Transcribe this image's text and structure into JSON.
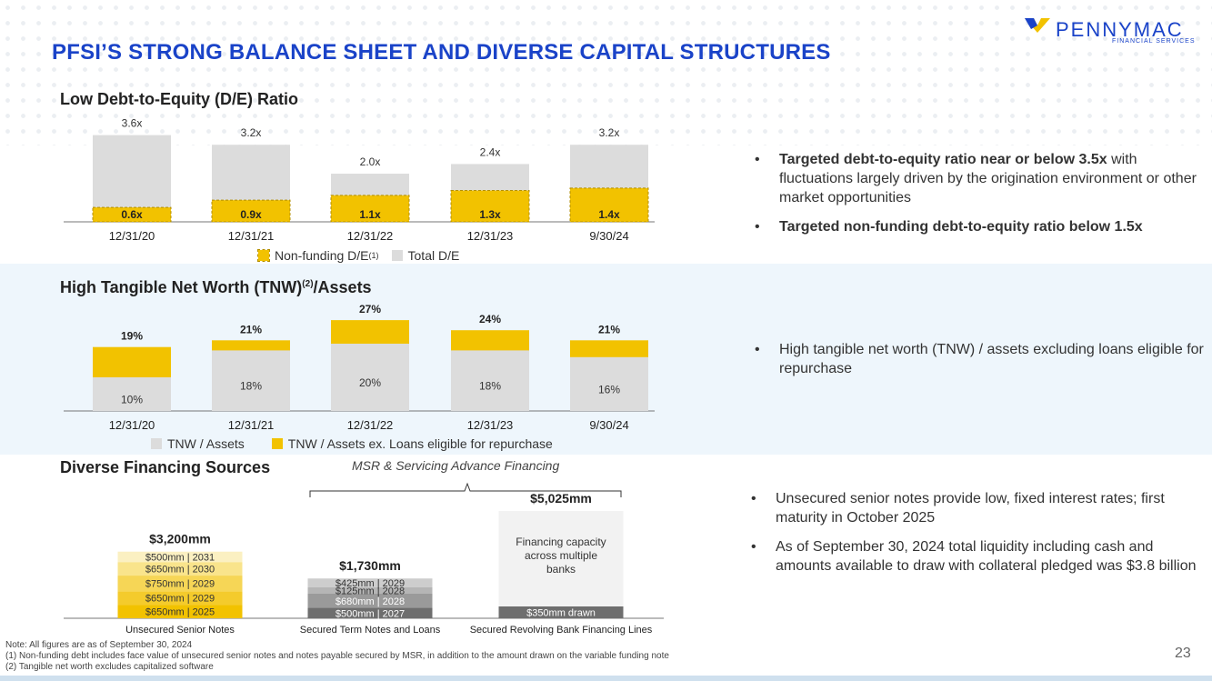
{
  "brand": {
    "name": "PENNYMAC",
    "sub": "FINANCIAL SERVICES",
    "color": "#1a43c8",
    "accent": "#f2c200"
  },
  "title": "PFSI’S STRONG BALANCE SHEET AND DIVERSE CAPITAL STRUCTURES",
  "sections": {
    "de": "Low Debt-to-Equity (D/E) Ratio",
    "tnw_a": "High Tangible Net Worth (TNW)",
    "tnw_sup": "(2)",
    "tnw_b": "/Assets",
    "fin": "Diverse Financing Sources"
  },
  "chart_data": [
    {
      "type": "bar",
      "categories": [
        "12/31/20",
        "12/31/21",
        "12/31/22",
        "12/31/23",
        "9/30/24"
      ],
      "series": [
        {
          "name": "Non-funding D/E",
          "values": [
            0.6,
            0.9,
            1.1,
            1.3,
            1.4
          ],
          "labels": [
            "0.6x",
            "0.9x",
            "1.1x",
            "1.3x",
            "1.4x"
          ],
          "color": "#f2c200"
        },
        {
          "name": "Total D/E",
          "values": [
            3.6,
            3.2,
            2.0,
            2.4,
            3.2
          ],
          "labels": [
            "3.6x",
            "3.2x",
            "2.0x",
            "2.4x",
            "3.2x"
          ],
          "color": "#dcdcdc"
        }
      ],
      "legend": [
        "Non-funding D/E",
        "Total D/E"
      ],
      "legend_sup": "(1)",
      "ylim": [
        0,
        4.0
      ]
    },
    {
      "type": "bar",
      "categories": [
        "12/31/20",
        "12/31/21",
        "12/31/22",
        "12/31/23",
        "9/30/24"
      ],
      "series": [
        {
          "name": "TNW / Assets",
          "values": [
            10,
            18,
            20,
            18,
            16
          ],
          "labels": [
            "10%",
            "18%",
            "20%",
            "18%",
            "16%"
          ],
          "color": "#dcdcdc"
        },
        {
          "name": "TNW / Assets ex. Loans eligible for repurchase",
          "values": [
            19,
            21,
            27,
            24,
            21
          ],
          "labels": [
            "19%",
            "21%",
            "27%",
            "24%",
            "21%"
          ],
          "color": "#f2c200"
        }
      ],
      "legend": [
        "TNW / Assets",
        "TNW / Assets ex. Loans eligible for repurchase"
      ],
      "ylim": [
        0,
        30
      ]
    },
    {
      "type": "bar",
      "unit": "mm",
      "bracket_label": "MSR & Servicing Advance Financing",
      "groups": [
        {
          "name": "Unsecured Senior Notes",
          "total": "$3,200mm",
          "segments": [
            {
              "label": "$650mm | 2025",
              "value": 650,
              "color": "#f2c200"
            },
            {
              "label": "$650mm | 2029",
              "value": 650,
              "color": "#f4cb2c"
            },
            {
              "label": "$750mm | 2029",
              "value": 750,
              "color": "#f6d656"
            },
            {
              "label": "$650mm | 2030",
              "value": 650,
              "color": "#f9e48c"
            },
            {
              "label": "$500mm | 2031",
              "value": 500,
              "color": "#fbf0c2"
            }
          ]
        },
        {
          "name": "Secured Term Notes and Loans",
          "total": "$1,730mm",
          "segments": [
            {
              "label": "$500mm | 2027",
              "value": 500,
              "color": "#6e6e6e"
            },
            {
              "label": "$680mm | 2028",
              "value": 680,
              "color": "#9a9a9a"
            },
            {
              "label": "$125mm | 2028",
              "value": 125,
              "color": "#b5b5b5"
            },
            {
              "label": "$425mm | 2029",
              "value": 425,
              "color": "#cdcdcd"
            }
          ]
        },
        {
          "name": "Secured Revolving Bank Financing Lines",
          "total": "$5,025mm",
          "segments": [
            {
              "label": "$350mm drawn",
              "value": 350,
              "color": "#6e6e6e"
            },
            {
              "label": "Financing capacity across multiple banks",
              "value": 4675,
              "color": "#f2f2f2"
            }
          ]
        }
      ]
    }
  ],
  "bullets": {
    "de": [
      {
        "bold": "Targeted debt-to-equity ratio near or below 3.5x",
        "rest": " with fluctuations largely driven by the origination environment or other market opportunities"
      },
      {
        "bold": "Targeted non-funding debt-to-equity ratio below 1.5x",
        "rest": ""
      }
    ],
    "tnw": [
      "High tangible net worth (TNW) / assets excluding loans eligible for repurchase"
    ],
    "fin": [
      "Unsecured senior notes provide low, fixed interest rates; first maturity in October 2025",
      "As of September 30, 2024 total liquidity including cash and amounts available to draw with collateral pledged was $3.8 billion"
    ]
  },
  "notes": [
    "Note: All figures are as of September 30, 2024",
    "(1) Non-funding debt includes face value of unsecured senior notes and notes payable secured by MSR, in addition to the amount drawn on the variable funding note",
    "(2) Tangible net worth excludes capitalized software"
  ],
  "page_number": "23"
}
